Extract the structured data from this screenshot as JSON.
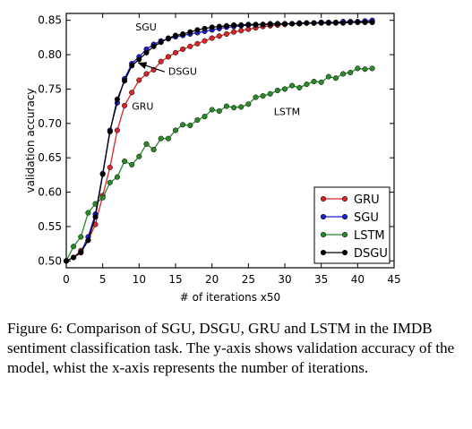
{
  "chart_data": {
    "type": "line",
    "title": "",
    "xlabel": "# of iterations x50",
    "ylabel": "validation accuracy",
    "xlim": [
      0,
      45
    ],
    "ylim": [
      0.49,
      0.86
    ],
    "x_ticks": [
      0,
      5,
      10,
      15,
      20,
      25,
      30,
      35,
      40,
      45
    ],
    "y_ticks": [
      "0.50",
      "0.55",
      "0.60",
      "0.65",
      "0.70",
      "0.75",
      "0.80",
      "0.85"
    ],
    "grid": false,
    "legend_position": "lower-right",
    "series": [
      {
        "name": "GRU",
        "color": "#d62728",
        "x": [
          0,
          1,
          2,
          3,
          4,
          5,
          6,
          7,
          8,
          9,
          10,
          11,
          12,
          13,
          14,
          15,
          16,
          17,
          18,
          19,
          20,
          21,
          22,
          23,
          24,
          25,
          26,
          27,
          28,
          29,
          30,
          31,
          32,
          33,
          34,
          35,
          36,
          37,
          38,
          39,
          40,
          41,
          42
        ],
        "y": [
          0.5,
          0.505,
          0.515,
          0.53,
          0.553,
          0.595,
          0.636,
          0.69,
          0.726,
          0.745,
          0.763,
          0.772,
          0.778,
          0.79,
          0.797,
          0.803,
          0.808,
          0.812,
          0.816,
          0.82,
          0.824,
          0.827,
          0.83,
          0.833,
          0.835,
          0.837,
          0.839,
          0.841,
          0.842,
          0.843,
          0.844,
          0.845,
          0.845,
          0.846,
          0.846,
          0.847,
          0.847,
          0.847,
          0.848,
          0.848,
          0.848,
          0.848,
          0.849
        ]
      },
      {
        "name": "SGU",
        "color": "#1f1fcf",
        "x": [
          0,
          1,
          2,
          3,
          4,
          5,
          6,
          7,
          8,
          9,
          10,
          11,
          12,
          13,
          14,
          15,
          16,
          17,
          18,
          19,
          20,
          21,
          22,
          23,
          24,
          25,
          26,
          27,
          28,
          29,
          30,
          31,
          32,
          33,
          34,
          35,
          36,
          37,
          38,
          39,
          40,
          41,
          42
        ],
        "y": [
          0.5,
          0.505,
          0.513,
          0.535,
          0.568,
          0.627,
          0.69,
          0.73,
          0.765,
          0.787,
          0.797,
          0.808,
          0.815,
          0.82,
          0.823,
          0.826,
          0.828,
          0.83,
          0.832,
          0.834,
          0.836,
          0.838,
          0.84,
          0.841,
          0.842,
          0.843,
          0.843,
          0.844,
          0.844,
          0.845,
          0.845,
          0.845,
          0.846,
          0.846,
          0.846,
          0.847,
          0.847,
          0.847,
          0.848,
          0.848,
          0.848,
          0.849,
          0.85
        ]
      },
      {
        "name": "LSTM",
        "color": "#2a8a2a",
        "x": [
          0,
          1,
          2,
          3,
          4,
          5,
          6,
          7,
          8,
          9,
          10,
          11,
          12,
          13,
          14,
          15,
          16,
          17,
          18,
          19,
          20,
          21,
          22,
          23,
          24,
          25,
          26,
          27,
          28,
          29,
          30,
          31,
          32,
          33,
          34,
          35,
          36,
          37,
          38,
          39,
          40,
          41,
          42
        ],
        "y": [
          0.5,
          0.521,
          0.535,
          0.57,
          0.583,
          0.592,
          0.614,
          0.622,
          0.645,
          0.64,
          0.652,
          0.67,
          0.662,
          0.678,
          0.678,
          0.69,
          0.698,
          0.697,
          0.705,
          0.71,
          0.72,
          0.718,
          0.725,
          0.723,
          0.724,
          0.728,
          0.738,
          0.74,
          0.743,
          0.748,
          0.75,
          0.755,
          0.752,
          0.757,
          0.761,
          0.76,
          0.768,
          0.766,
          0.772,
          0.774,
          0.78,
          0.779,
          0.78
        ]
      },
      {
        "name": "DSGU",
        "color": "#000000",
        "x": [
          0,
          1,
          2,
          3,
          4,
          5,
          6,
          7,
          8,
          9,
          10,
          11,
          12,
          13,
          14,
          15,
          16,
          17,
          18,
          19,
          20,
          21,
          22,
          23,
          24,
          25,
          26,
          27,
          28,
          29,
          30,
          31,
          32,
          33,
          34,
          35,
          36,
          37,
          38,
          39,
          40,
          41,
          42
        ],
        "y": [
          0.5,
          0.505,
          0.512,
          0.53,
          0.564,
          0.626,
          0.688,
          0.735,
          0.762,
          0.784,
          0.793,
          0.803,
          0.812,
          0.818,
          0.824,
          0.828,
          0.83,
          0.833,
          0.836,
          0.838,
          0.84,
          0.841,
          0.842,
          0.843,
          0.843,
          0.844,
          0.844,
          0.844,
          0.845,
          0.845,
          0.845,
          0.845,
          0.845,
          0.846,
          0.846,
          0.846,
          0.846,
          0.846,
          0.846,
          0.847,
          0.847,
          0.847,
          0.847
        ]
      }
    ],
    "annotations": [
      {
        "text": "SGU",
        "x": 9.5,
        "y": 0.835
      },
      {
        "text": "DSGU",
        "x": 14.0,
        "y": 0.771
      },
      {
        "text": "GRU",
        "x": 9.0,
        "y": 0.72
      },
      {
        "text": "LSTM",
        "x": 28.5,
        "y": 0.712
      }
    ],
    "annotation_arrow": {
      "label": "DSGU",
      "from": [
        13.5,
        0.775
      ],
      "to": [
        9.9,
        0.788
      ]
    }
  },
  "caption": "Figure 6: Comparison of SGU, DSGU, GRU and LSTM in the IMDB sentiment classification task. The y-axis shows validation accuracy of the model, whist the x-axis represents the number of iterations."
}
